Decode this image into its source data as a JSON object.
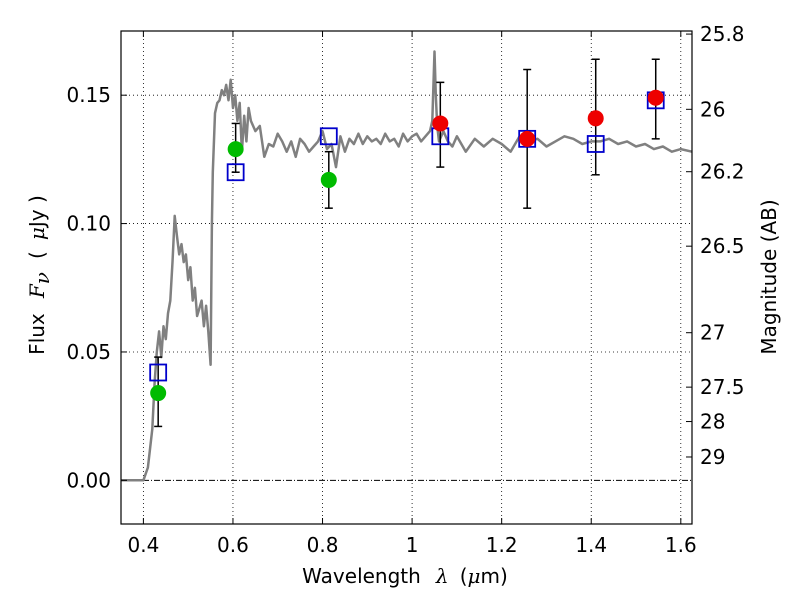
{
  "chart_data": {
    "type": "scatter",
    "xlabel": {
      "prefix": "Wavelength",
      "symbol": "λ",
      "unit_open": "(",
      "unit_mu": "μ",
      "unit_rest": "m)"
    },
    "ylabel": {
      "prefix": "Flux",
      "symbol": "F",
      "subscript": "ν",
      "unit_open": "(",
      "unit_mu": "μ",
      "unit_rest": "Jy )"
    },
    "y2label": "Magnitude (AB)",
    "xlim": [
      0.35,
      1.625
    ],
    "ylim": [
      -0.017,
      0.175
    ],
    "grid": true,
    "x_ticks": [
      {
        "value": 0.4,
        "label": "0.4"
      },
      {
        "value": 0.6,
        "label": "0.6"
      },
      {
        "value": 0.8,
        "label": "0.8"
      },
      {
        "value": 1.0,
        "label": "1"
      },
      {
        "value": 1.2,
        "label": "1.2"
      },
      {
        "value": 1.4,
        "label": "1.4"
      },
      {
        "value": 1.6,
        "label": "1.6"
      }
    ],
    "y_ticks": [
      {
        "value": 0.0,
        "label": "0.00"
      },
      {
        "value": 0.05,
        "label": "0.05"
      },
      {
        "value": 0.1,
        "label": "0.10"
      },
      {
        "value": 0.15,
        "label": "0.15"
      }
    ],
    "y2_ticks": [
      {
        "flux": 0.1738,
        "label": "25.8"
      },
      {
        "flux": 0.1445,
        "label": "26"
      },
      {
        "flux": 0.1202,
        "label": "26.2"
      },
      {
        "flux": 0.0912,
        "label": "26.5"
      },
      {
        "flux": 0.0575,
        "label": "27"
      },
      {
        "flux": 0.0363,
        "label": "27.5"
      },
      {
        "flux": 0.0229,
        "label": "28"
      },
      {
        "flux": 0.0091,
        "label": "29"
      }
    ],
    "series": [
      {
        "name": "model_spectrum",
        "kind": "line",
        "color": "#808080",
        "x": [
          0.35,
          0.4,
          0.41,
          0.42,
          0.425,
          0.43,
          0.435,
          0.44,
          0.445,
          0.45,
          0.455,
          0.46,
          0.465,
          0.47,
          0.475,
          0.48,
          0.485,
          0.49,
          0.495,
          0.5,
          0.505,
          0.51,
          0.515,
          0.52,
          0.525,
          0.53,
          0.535,
          0.54,
          0.545,
          0.55,
          0.553,
          0.555,
          0.56,
          0.565,
          0.57,
          0.575,
          0.58,
          0.585,
          0.59,
          0.595,
          0.6,
          0.605,
          0.61,
          0.615,
          0.62,
          0.625,
          0.63,
          0.635,
          0.64,
          0.65,
          0.66,
          0.67,
          0.68,
          0.69,
          0.7,
          0.71,
          0.72,
          0.73,
          0.74,
          0.75,
          0.76,
          0.77,
          0.78,
          0.79,
          0.8,
          0.81,
          0.82,
          0.83,
          0.84,
          0.85,
          0.86,
          0.87,
          0.88,
          0.89,
          0.9,
          0.91,
          0.92,
          0.93,
          0.94,
          0.95,
          0.96,
          0.97,
          0.98,
          0.99,
          1.0,
          1.01,
          1.02,
          1.03,
          1.04,
          1.045,
          1.05,
          1.053,
          1.056,
          1.06,
          1.07,
          1.08,
          1.09,
          1.1,
          1.12,
          1.14,
          1.16,
          1.18,
          1.2,
          1.22,
          1.24,
          1.26,
          1.28,
          1.3,
          1.32,
          1.34,
          1.36,
          1.38,
          1.4,
          1.42,
          1.44,
          1.46,
          1.48,
          1.5,
          1.52,
          1.54,
          1.56,
          1.58,
          1.6,
          1.625
        ],
        "y": [
          0.0,
          0.0,
          0.005,
          0.02,
          0.038,
          0.05,
          0.058,
          0.048,
          0.06,
          0.055,
          0.065,
          0.07,
          0.085,
          0.103,
          0.095,
          0.088,
          0.092,
          0.085,
          0.088,
          0.078,
          0.083,
          0.07,
          0.075,
          0.064,
          0.067,
          0.07,
          0.06,
          0.068,
          0.058,
          0.045,
          0.1,
          0.12,
          0.143,
          0.147,
          0.148,
          0.152,
          0.15,
          0.154,
          0.148,
          0.156,
          0.145,
          0.15,
          0.14,
          0.147,
          0.128,
          0.142,
          0.132,
          0.145,
          0.14,
          0.136,
          0.138,
          0.126,
          0.131,
          0.13,
          0.135,
          0.132,
          0.128,
          0.132,
          0.126,
          0.133,
          0.131,
          0.128,
          0.13,
          0.132,
          0.136,
          0.129,
          0.131,
          0.122,
          0.134,
          0.128,
          0.133,
          0.131,
          0.135,
          0.131,
          0.134,
          0.132,
          0.133,
          0.131,
          0.135,
          0.132,
          0.133,
          0.13,
          0.135,
          0.132,
          0.134,
          0.135,
          0.132,
          0.134,
          0.136,
          0.14,
          0.167,
          0.15,
          0.138,
          0.132,
          0.136,
          0.132,
          0.13,
          0.134,
          0.128,
          0.133,
          0.13,
          0.133,
          0.131,
          0.128,
          0.134,
          0.132,
          0.133,
          0.13,
          0.132,
          0.134,
          0.133,
          0.131,
          0.132,
          0.132,
          0.133,
          0.131,
          0.132,
          0.13,
          0.131,
          0.129,
          0.13,
          0.128,
          0.129,
          0.128
        ]
      },
      {
        "name": "model_bandpass",
        "kind": "open-square",
        "color": "#0000cc",
        "points": [
          [
            0.433,
            0.042
          ],
          [
            0.606,
            0.12
          ],
          [
            0.814,
            0.134
          ],
          [
            1.063,
            0.134
          ],
          [
            1.257,
            0.133
          ],
          [
            1.41,
            0.131
          ],
          [
            1.544,
            0.148
          ]
        ]
      },
      {
        "name": "observed_optical",
        "kind": "circle",
        "color": "#00bb00",
        "points": [
          [
            0.433,
            0.034
          ],
          [
            0.606,
            0.129
          ],
          [
            0.814,
            0.117
          ]
        ]
      },
      {
        "name": "observed_nir",
        "kind": "circle",
        "color": "#ee0000",
        "points": [
          [
            1.063,
            0.139
          ],
          [
            1.257,
            0.133
          ],
          [
            1.41,
            0.141
          ],
          [
            1.544,
            0.149
          ]
        ]
      }
    ],
    "error_bars": [
      {
        "x": 0.433,
        "low": 0.021,
        "high": 0.048
      },
      {
        "x": 0.606,
        "low": 0.12,
        "high": 0.139
      },
      {
        "x": 0.814,
        "low": 0.106,
        "high": 0.128
      },
      {
        "x": 1.063,
        "low": 0.122,
        "high": 0.155
      },
      {
        "x": 1.257,
        "low": 0.106,
        "high": 0.16
      },
      {
        "x": 1.41,
        "low": 0.119,
        "high": 0.164
      },
      {
        "x": 1.544,
        "low": 0.133,
        "high": 0.164
      }
    ]
  }
}
